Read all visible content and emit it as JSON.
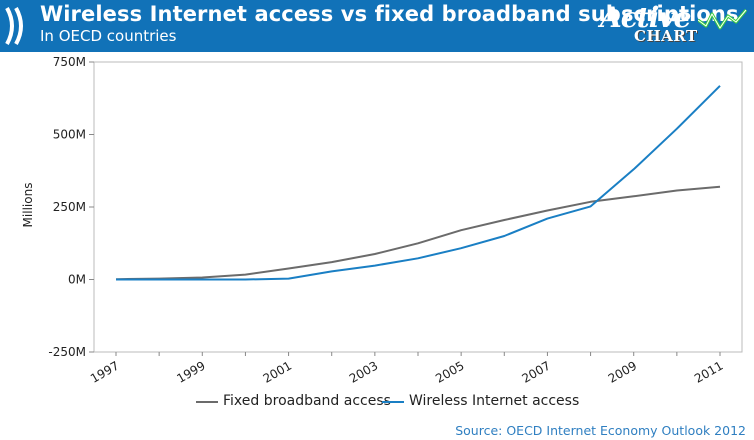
{
  "header": {
    "title": "Wireless Internet access vs fixed broadband subscriptions",
    "subtitle": "In OECD countries",
    "brand_word": "Active",
    "brand_sub": "CHART",
    "background_color": "#1172b8"
  },
  "source": "Source: OECD Internet Economy Outlook 2012",
  "chart_data": {
    "type": "line",
    "title": "Wireless Internet access vs fixed broadband subscriptions",
    "subtitle": "In OECD countries",
    "xlabel": "",
    "ylabel": "Millions",
    "x": [
      1997,
      1998,
      1999,
      2000,
      2001,
      2002,
      2003,
      2004,
      2005,
      2006,
      2007,
      2008,
      2009,
      2010,
      2011
    ],
    "x_tick_labels": [
      "1997",
      "1999",
      "2001",
      "2003",
      "2005",
      "2007",
      "2009",
      "2011"
    ],
    "y_tick_labels": [
      "750M",
      "500M",
      "250M",
      "0M",
      "-250M"
    ],
    "y_ticks": [
      750,
      500,
      250,
      0,
      -250
    ],
    "ylim": [
      -250,
      750
    ],
    "xlim": [
      1997,
      2011
    ],
    "grid": false,
    "legend_position": "bottom",
    "series": [
      {
        "name": "Fixed broadband access",
        "color": "#6b6b6b",
        "values": [
          1,
          3,
          7,
          17,
          38,
          60,
          88,
          125,
          170,
          205,
          238,
          268,
          287,
          307,
          320
        ]
      },
      {
        "name": "Wireless Internet access",
        "color": "#1a7fc4",
        "values": [
          0,
          0,
          0,
          0,
          3,
          28,
          48,
          73,
          108,
          150,
          210,
          252,
          380,
          520,
          668
        ]
      }
    ]
  }
}
